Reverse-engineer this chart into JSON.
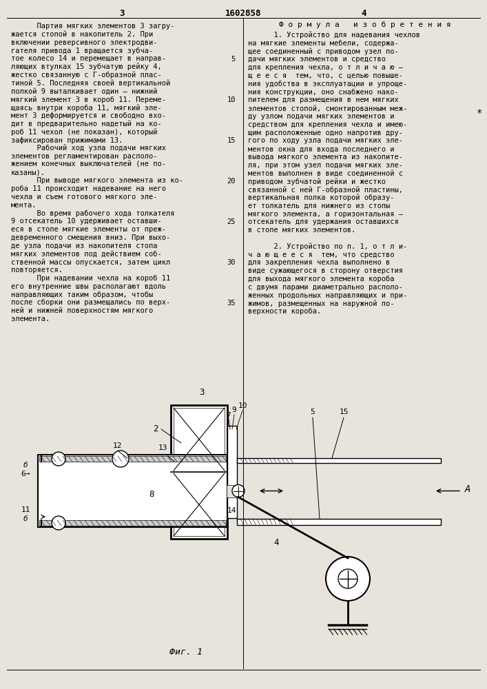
{
  "page_num_left": "3",
  "patent_num": "1602858",
  "page_num_right": "4",
  "formula_title": "Ф о р м у л а   и з о б р е т е н и я",
  "left_col": [
    "      Партия мягких элементов 3 загру-",
    "жается стопой в накопитель 2. При",
    "включении реверсивного электродви-",
    "гателя привода 1 вращается зубча-",
    "тое колесо 14 и перемещает в направ-",
    "ляющих втулках 15 зубчатую рейку 4,",
    "жестко связанную с Г-образной плас-",
    "тиной 5. Последняя своей вертикальной",
    "полкой 9 выталкивает один – нижний",
    "мягкий элемент 3 в короб 11. Переме-",
    "щаясь внутри короба 11, мягкий эле-",
    "мент 3 деформируется и свободно вхо-",
    "дит в предварительно надетый на ко-",
    "роб 11 чехол (не показан), который",
    "зафиксирован прижимами 13.",
    "      Рабочий ход узла подачи мягких",
    "элементов регламентирован располо-",
    "жением конечных выключателей (не по-",
    "казаны).",
    "      При выводе мягкого элемента из ко-",
    "роба 11 происходит надевание на него",
    "чехла и съем готового мягкого эле-",
    "мента.",
    "      Во время рабочего хода толкателя",
    "9 отсекатель 10 удерживает оставши-",
    "еся в стопе мягкие элементы от преж-",
    "девременного смещения вниз. При выхо-",
    "де узла подачи из накопителя стопа",
    "мягких элементов под действием соб-",
    "ственной массы опускается, затем цикл",
    "повторяется.",
    "      При надевании чехла на короб 11",
    "его внутренние швы располагают вдоль",
    "направляющих таким образом, чтобы",
    "после сборки они размещались по верх-",
    "ней и нижней поверхностям мягкого",
    "элемента."
  ],
  "right_col": [
    "      1. Устройство для надевания чехлов",
    "на мягкие элементы мебели, содержа-",
    "щее соединенный с приводом узел по-",
    "дачи мягких элементов и средство",
    "для крепления чехла, о т л и ч а ю –",
    "щ е е с я  тем, что, с целью повыше-",
    "ния удобства в эксплуатации и упроще-",
    "ния конструкции, оно снабжено нако-",
    "пителем для размещения в нем мягких",
    "элементов стопой, смонтированным меж-",
    "ду узлом подачи мягких элементов и",
    "средством для крепления чехла и имею-",
    "щим расположенные одно напротив дру-",
    "гого по ходу узла подачи мягких эле-",
    "ментов окна для входа последнего и",
    "вывода мягкого элемента из накопите-",
    "ля, при этом узел подачи мягких эле-",
    "ментов выполнен в виде соединенной с",
    "приводом зубчатой рейки и жестко",
    "связанной с ней Г-образной пластины,",
    "вертикальная полка которой образу-",
    "ет толкатель для нижнего из стопы",
    "мягкого элемента, а горизонтальная –",
    "отсекатель для удержания оставшихся",
    "в стопе мягких элементов.",
    "",
    "      2. Устройство по п. 1, о т л и-",
    "ч а ю щ е е с я  тем, что средство",
    "для закрепления чехла выполнено в",
    "виде сужающегося в сторону отверстия",
    "для выхода мягкого элемента короба",
    "с двумя парами диаметрально располо-",
    "женных продольных направляющих и при-",
    "жимов, размещенных на наружной по-",
    "верхности короба."
  ],
  "fig_caption": "Фиг. 1",
  "bg_color": "#e8e4dc"
}
